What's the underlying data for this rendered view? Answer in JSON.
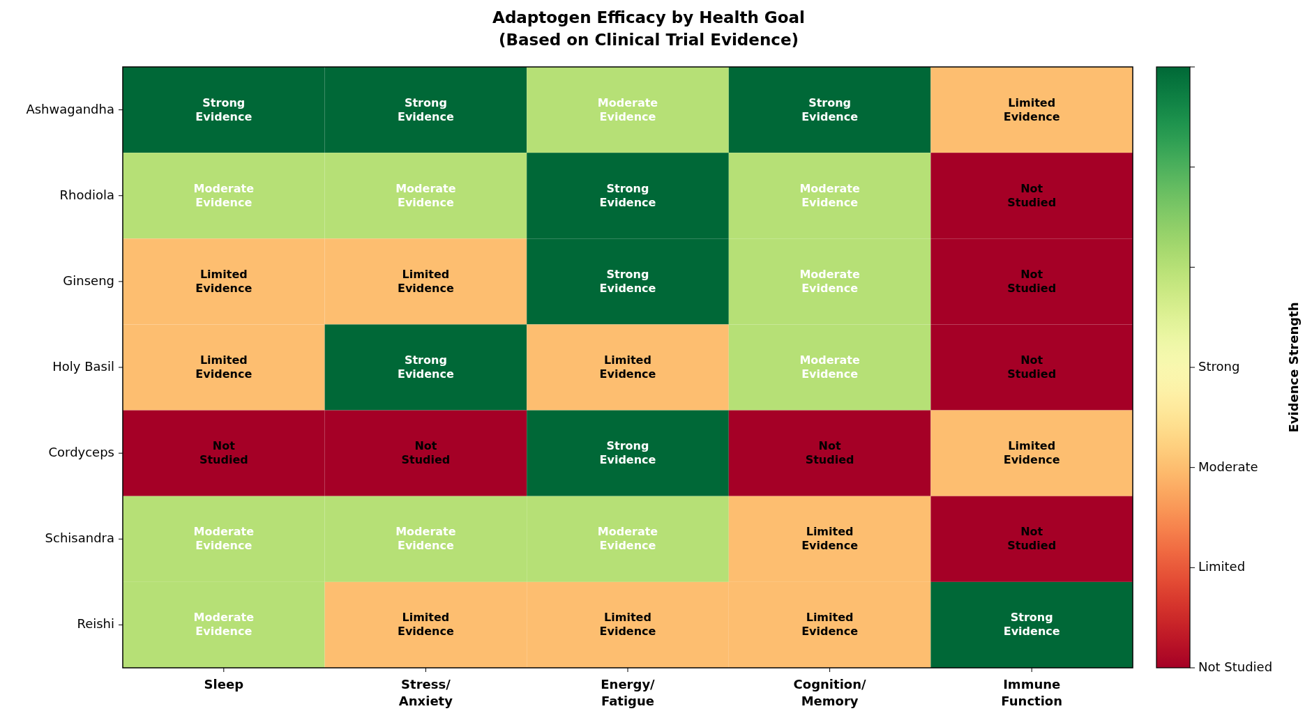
{
  "chart_data": {
    "type": "heatmap",
    "title": "Adaptogen Efficacy by Health Goal\n(Based on Clinical Trial Evidence)",
    "categories": [
      "Sleep",
      "Stress/\nAnxiety",
      "Energy/\nFatigue",
      "Cognition/\nMemory",
      "Immune\nFunction"
    ],
    "y_categories": [
      "Ashwagandha",
      "Rhodiola",
      "Ginseng",
      "Holy Basil",
      "Cordyceps",
      "Schisandra",
      "Reishi"
    ],
    "cells": [
      [
        3,
        3,
        2,
        3,
        1
      ],
      [
        2,
        2,
        3,
        2,
        0
      ],
      [
        1,
        1,
        3,
        2,
        0
      ],
      [
        1,
        3,
        1,
        2,
        0
      ],
      [
        0,
        0,
        3,
        0,
        1
      ],
      [
        2,
        2,
        2,
        1,
        0
      ],
      [
        2,
        1,
        1,
        1,
        3
      ]
    ],
    "cell_labels": [
      [
        "Strong\nEvidence",
        "Strong\nEvidence",
        "Moderate\nEvidence",
        "Strong\nEvidence",
        "Limited\nEvidence"
      ],
      [
        "Moderate\nEvidence",
        "Moderate\nEvidence",
        "Strong\nEvidence",
        "Moderate\nEvidence",
        "Not\nStudied"
      ],
      [
        "Limited\nEvidence",
        "Limited\nEvidence",
        "Strong\nEvidence",
        "Moderate\nEvidence",
        "Not\nStudied"
      ],
      [
        "Limited\nEvidence",
        "Strong\nEvidence",
        "Limited\nEvidence",
        "Moderate\nEvidence",
        "Not\nStudied"
      ],
      [
        "Not\nStudied",
        "Not\nStudied",
        "Strong\nEvidence",
        "Not\nStudied",
        "Limited\nEvidence"
      ],
      [
        "Moderate\nEvidence",
        "Moderate\nEvidence",
        "Moderate\nEvidence",
        "Limited\nEvidence",
        "Not\nStudied"
      ],
      [
        "Moderate\nEvidence",
        "Limited\nEvidence",
        "Limited\nEvidence",
        "Limited\nEvidence",
        "Strong\nEvidence"
      ]
    ],
    "clabel": "Evidence Strength",
    "clim": [
      0,
      3
    ],
    "cticks": [
      {
        "value": 0,
        "label": "Not Studied"
      },
      {
        "value": 0.5,
        "label": "Limited"
      },
      {
        "value": 1,
        "label": "Moderate"
      },
      {
        "value": 1.5,
        "label": "Strong"
      },
      {
        "value": 2,
        "label": null
      },
      {
        "value": 2.5,
        "label": null
      },
      {
        "value": 3,
        "label": null
      }
    ]
  }
}
